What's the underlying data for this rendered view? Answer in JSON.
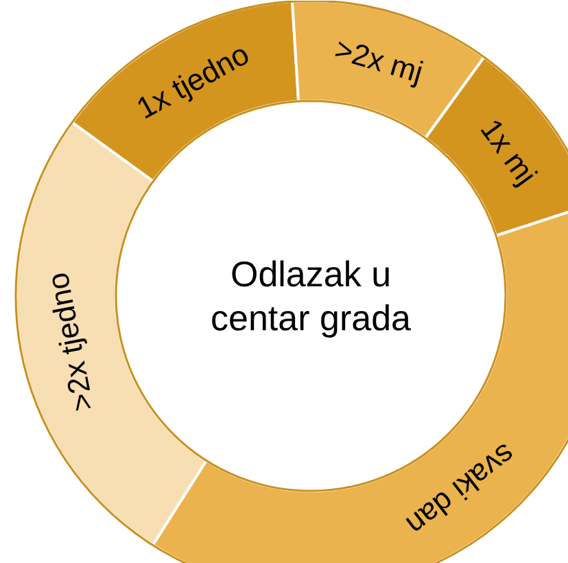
{
  "chart_data": {
    "type": "donut",
    "title": "Odlazak u\ncentar grada",
    "categories": [
      "1x tjedno",
      ">2x mj",
      "1x mj",
      "svaki dan",
      ">2x tjedno"
    ],
    "values": [
      14,
      11,
      10,
      39,
      26
    ],
    "colors": [
      "#d4951f",
      "#ebb34d",
      "#d4951f",
      "#ebb34d",
      "#f8deb3"
    ]
  }
}
